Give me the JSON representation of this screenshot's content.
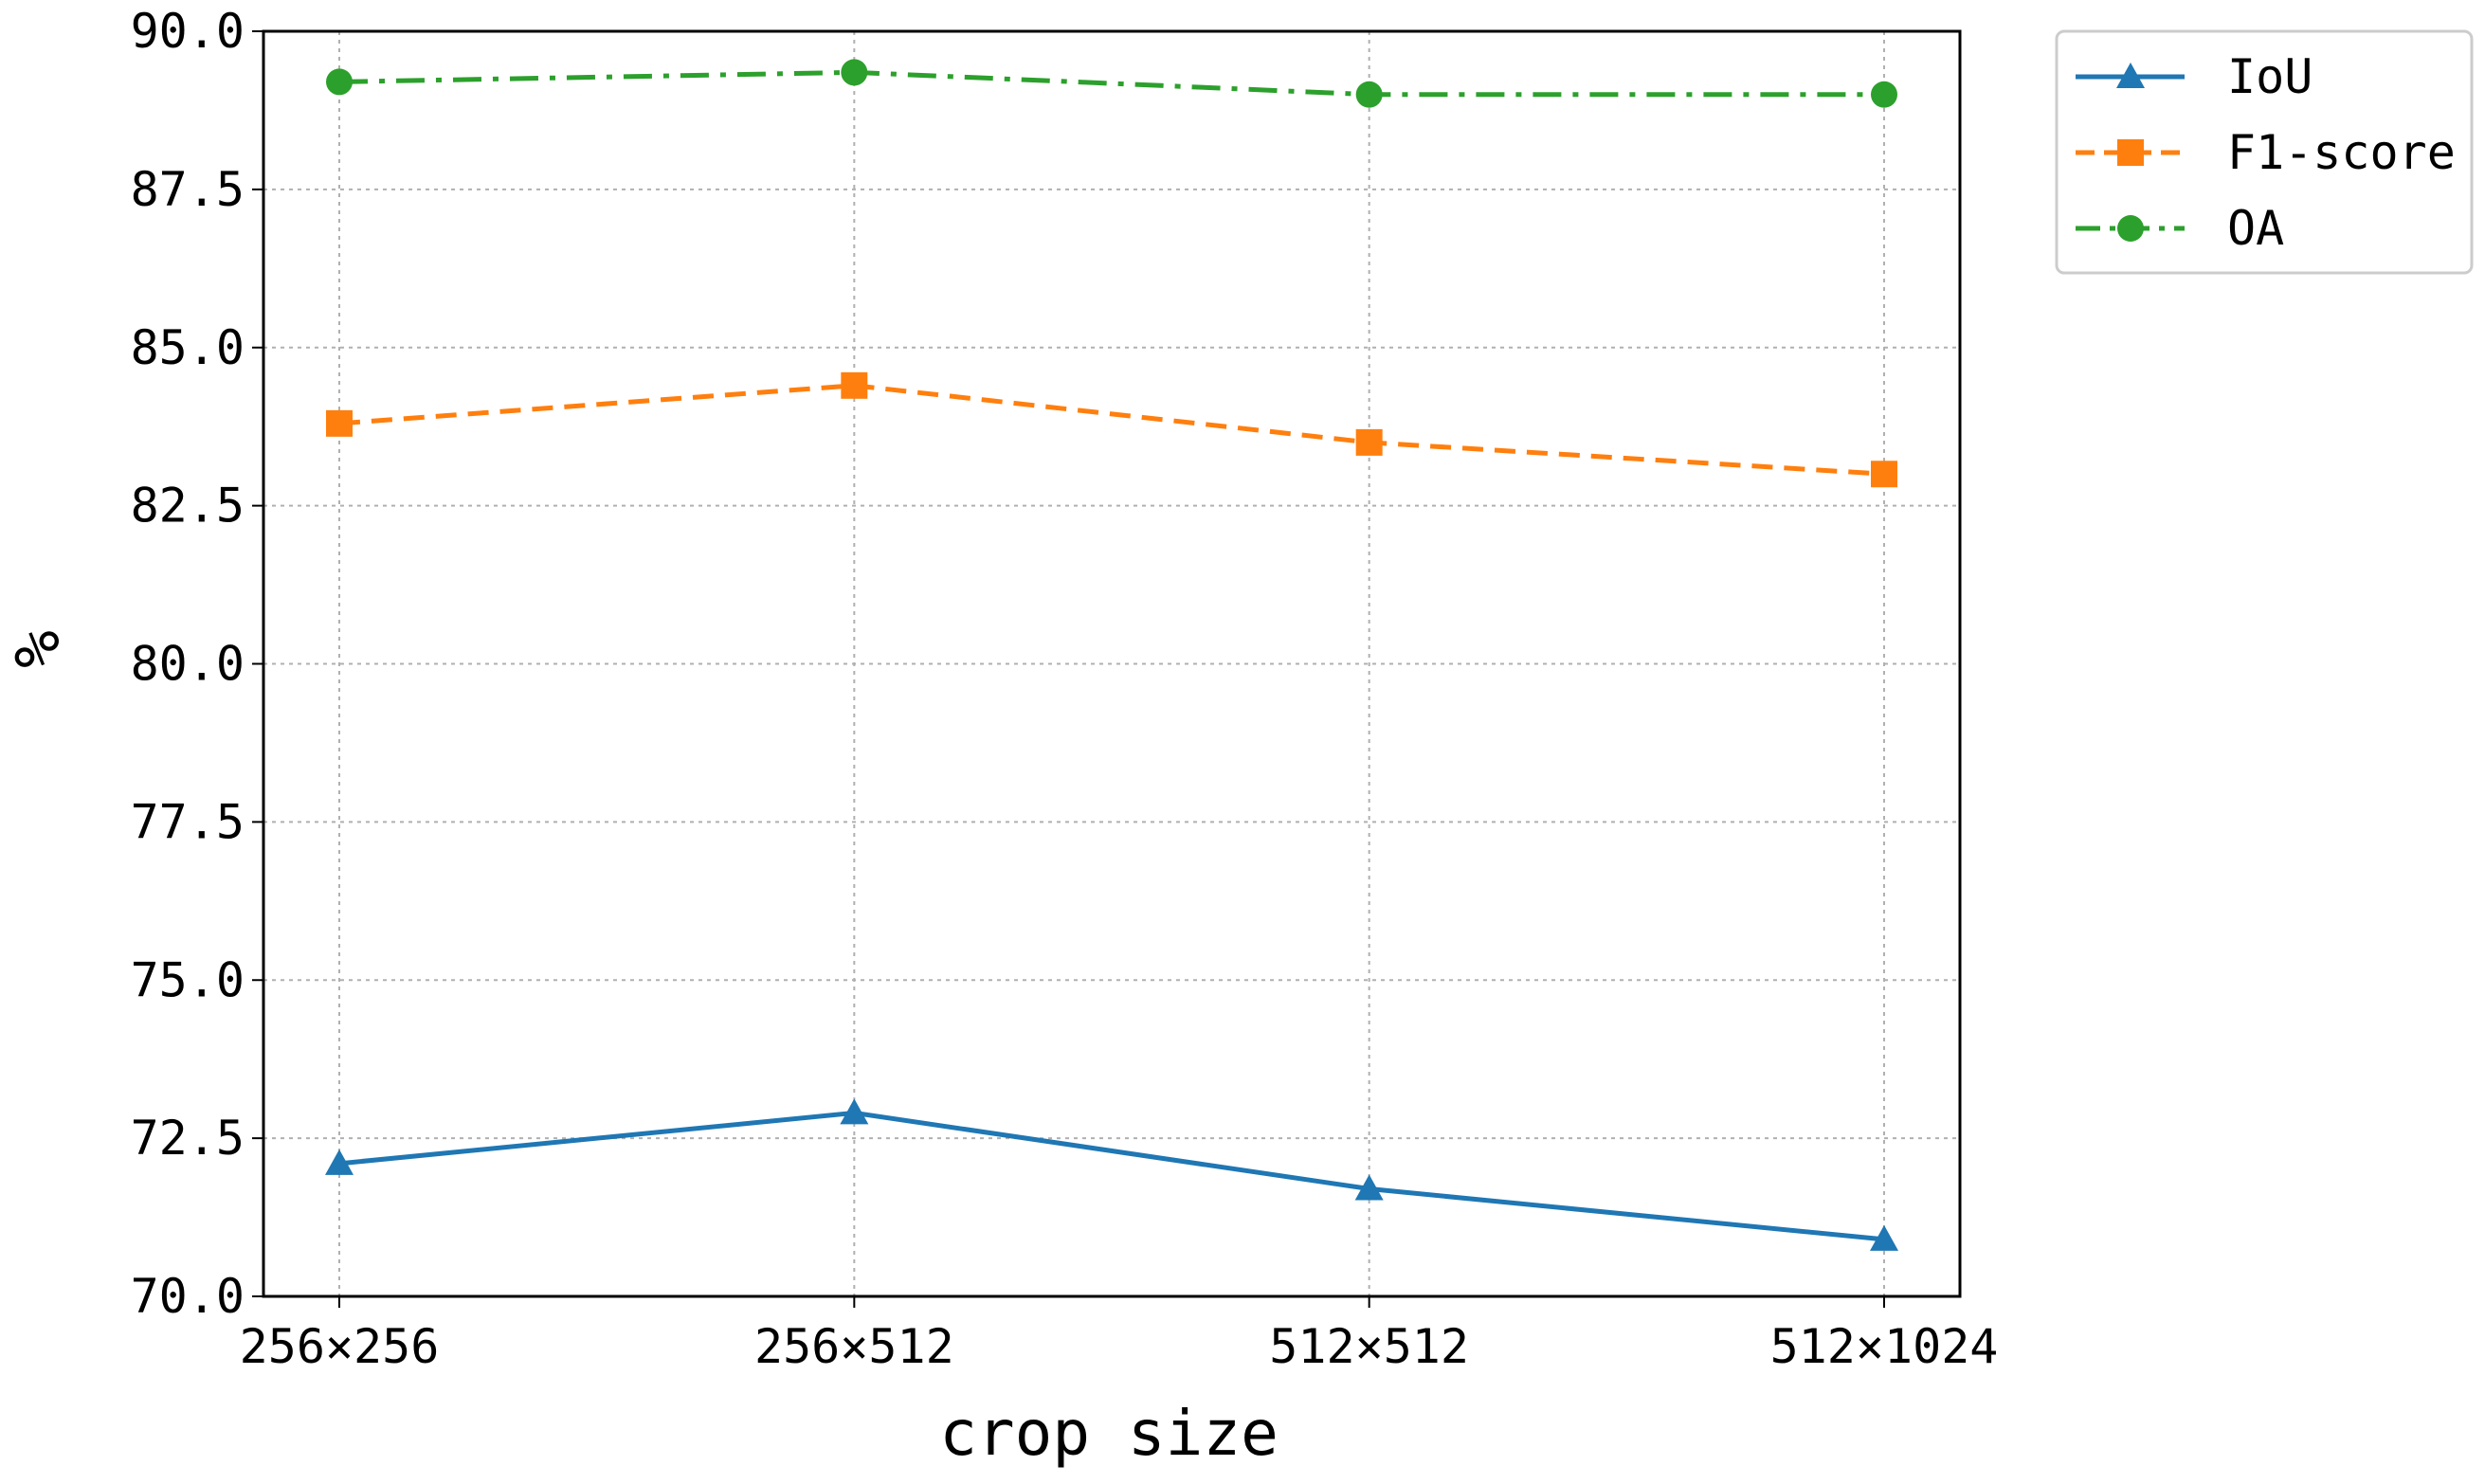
{
  "chart_data": {
    "type": "line",
    "categories": [
      "256×256",
      "256×512",
      "512×512",
      "512×1024"
    ],
    "series": [
      {
        "name": "IoU",
        "values": [
          72.1,
          72.9,
          71.7,
          70.9
        ],
        "color": "#1f77b4",
        "marker": "triangle",
        "line_style": "solid"
      },
      {
        "name": "F1-score",
        "values": [
          83.8,
          84.4,
          83.5,
          83.0
        ],
        "color": "#ff7f0e",
        "marker": "square",
        "line_style": "dashed"
      },
      {
        "name": "OA",
        "values": [
          89.2,
          89.35,
          89.0,
          89.0
        ],
        "color": "#2ca02c",
        "marker": "circle",
        "line_style": "dashdot"
      }
    ],
    "xlabel": "crop size",
    "ylabel": "%",
    "ylim": [
      70.0,
      90.0
    ],
    "yticks": [
      "70.0",
      "72.5",
      "75.0",
      "77.5",
      "80.0",
      "82.5",
      "85.0",
      "87.5",
      "90.0"
    ],
    "grid": true,
    "legend_position": "outside-top-right"
  }
}
